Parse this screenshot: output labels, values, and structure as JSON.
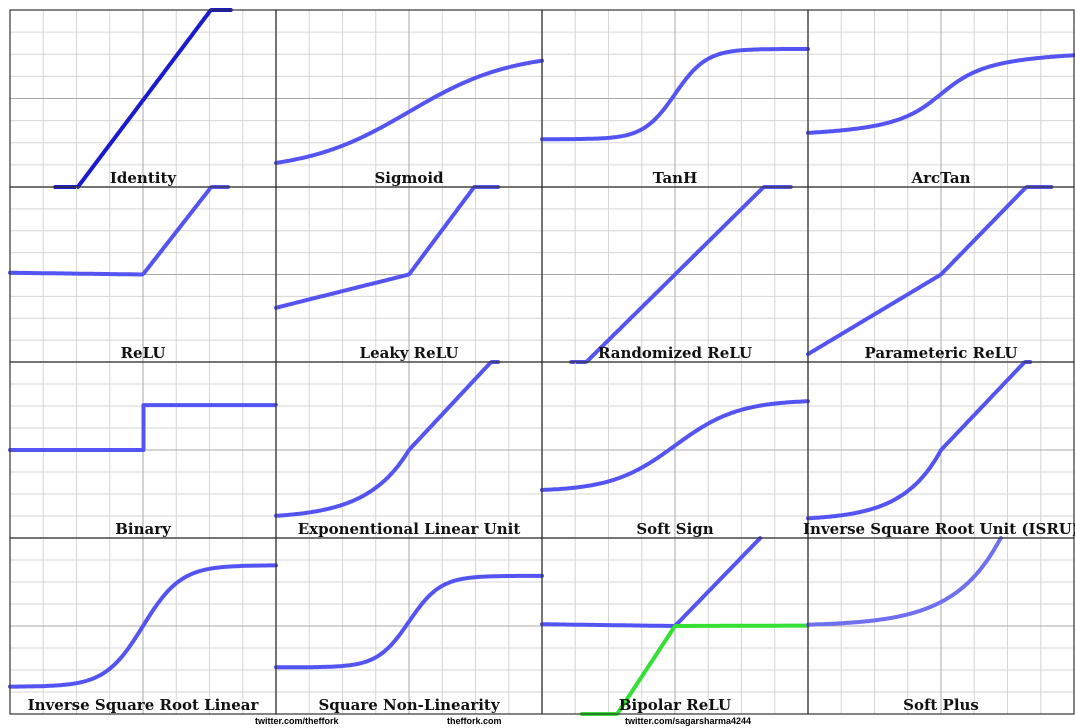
{
  "colors": {
    "curve": "#5454f2",
    "identity_curve": "#1a1ad0",
    "softplus_curve": "#6f6ff2",
    "bipolar_secondary": "#33e033",
    "grid": "#d6d6d6",
    "axis": "#a9a9a9",
    "frame": "#333333"
  },
  "panels": [
    {
      "title": "Identity",
      "fn": "identity"
    },
    {
      "title": "Sigmoid",
      "fn": "sigmoid"
    },
    {
      "title": "TanH",
      "fn": "tanh"
    },
    {
      "title": "ArcTan",
      "fn": "arctan"
    },
    {
      "title": "ReLU",
      "fn": "relu"
    },
    {
      "title": "Leaky ReLU",
      "fn": "leaky_relu"
    },
    {
      "title": "Randomized ReLU",
      "fn": "randomized_relu"
    },
    {
      "title": "Parameteric ReLU",
      "fn": "parametric_relu"
    },
    {
      "title": "Binary",
      "fn": "binary"
    },
    {
      "title": "Exponentional Linear Unit",
      "fn": "elu"
    },
    {
      "title": "Soft Sign",
      "fn": "softsign"
    },
    {
      "title": "Inverse Square Root Unit (ISRU)",
      "fn": "isru"
    },
    {
      "title": "Inverse Square Root Linear",
      "fn": "isrl"
    },
    {
      "title": "Square Non-Linearity",
      "fn": "sqnl"
    },
    {
      "title": "Bipolar ReLU",
      "fn": "bipolar_relu"
    },
    {
      "title": "Soft Plus",
      "fn": "softplus"
    }
  ],
  "credits": [
    "twitter.com/theffork",
    "theffork.com",
    "twitter.com/sagarsharma4244"
  ]
}
